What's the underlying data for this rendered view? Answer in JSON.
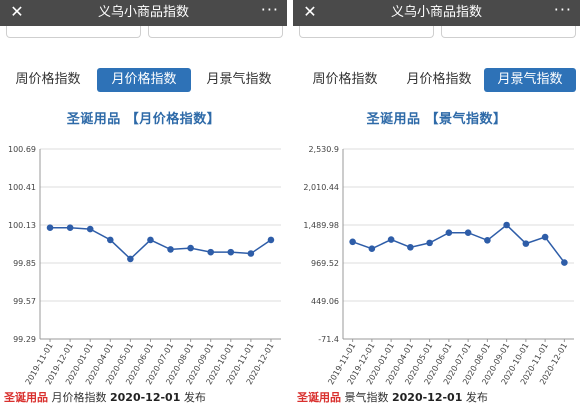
{
  "left": {
    "window": {
      "title": "义乌小商品指数",
      "more": "···",
      "close": "✕"
    },
    "tabs": [
      {
        "label": "周价格指数",
        "active": false
      },
      {
        "label": "月价格指数",
        "active": true
      },
      {
        "label": "月景气指数",
        "active": false
      }
    ],
    "chart_title": "圣诞用品 【月价格指数】",
    "footer": {
      "category": "圣诞用品",
      "index_name": "月价格指数",
      "date": "2020-12-01",
      "action": "发布"
    },
    "chart_data": {
      "type": "line",
      "title": "圣诞用品 【月价格指数】",
      "xlabel": "",
      "ylabel": "",
      "categories": [
        "2019-11-01",
        "2019-12-01",
        "2020-01-01",
        "2020-04-01",
        "2020-05-01",
        "2020-06-01",
        "2020-07-01",
        "2020-08-01",
        "2020-09-01",
        "2020-10-01",
        "2020-11-01",
        "2020-12-01"
      ],
      "values": [
        100.11,
        100.11,
        100.1,
        100.02,
        99.88,
        100.02,
        99.95,
        99.96,
        99.93,
        99.93,
        99.92,
        100.02
      ],
      "yticks": [
        "100.69",
        "100.41",
        "100.13",
        "99.85",
        "99.57",
        "99.29"
      ],
      "ylim": [
        99.29,
        100.69
      ],
      "color": "#2e5da8",
      "grid": true
    }
  },
  "right": {
    "window": {
      "title": "义乌小商品指数",
      "more": "···",
      "close": "✕"
    },
    "tabs": [
      {
        "label": "周价格指数",
        "active": false
      },
      {
        "label": "月价格指数",
        "active": false
      },
      {
        "label": "月景气指数",
        "active": true
      }
    ],
    "chart_title": "圣诞用品 【景气指数】",
    "footer": {
      "category": "圣诞用品",
      "index_name": "景气指数",
      "date": "2020-12-01",
      "action": "发布"
    },
    "chart_data": {
      "type": "line",
      "title": "圣诞用品 【景气指数】",
      "xlabel": "",
      "ylabel": "",
      "categories": [
        "2019-11-01",
        "2019-12-01",
        "2020-01-01",
        "2020-04-01",
        "2020-05-01",
        "2020-06-01",
        "2020-07-01",
        "2020-08-01",
        "2020-09-01",
        "2020-10-01",
        "2020-11-01",
        "2020-12-01"
      ],
      "values": [
        1260,
        1165,
        1290,
        1185,
        1245,
        1385,
        1385,
        1280,
        1490,
        1235,
        1325,
        975
      ],
      "yticks": [
        "2,530.9",
        "2,010.44",
        "1,489.98",
        "969.52",
        "449.06",
        "-71.4"
      ],
      "ylim": [
        -71.4,
        2530.9
      ],
      "color": "#2e5da8",
      "grid": true
    }
  }
}
